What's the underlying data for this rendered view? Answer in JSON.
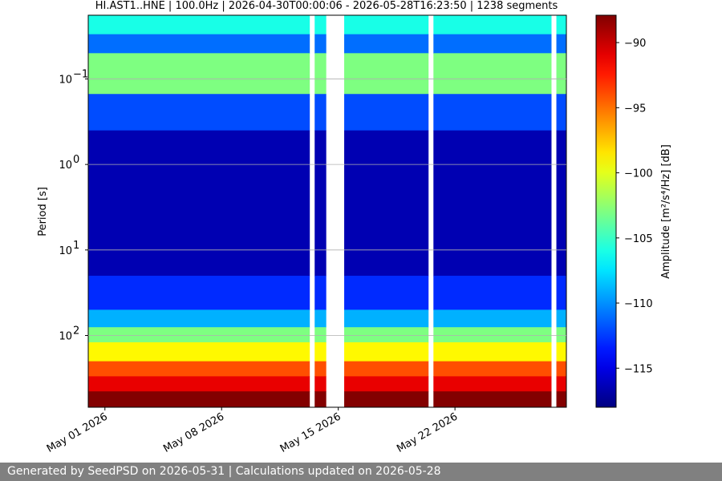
{
  "chart_data": {
    "type": "heatmap",
    "title": "HI.AST1..HNE | 100.0Hz | 2026-04-30T00:00:06 - 2026-05-28T16:23:50 | 1238 segments",
    "ylabel": "Period [s]",
    "xlim": [
      "2026-04-30T00:00:06",
      "2026-05-28T16:23:50"
    ],
    "xticks": [
      {
        "value": "2026-05-01",
        "label": "May 01 2026"
      },
      {
        "value": "2026-05-08",
        "label": "May 08 2026"
      },
      {
        "value": "2026-05-15",
        "label": "May 15 2026"
      },
      {
        "value": "2026-05-22",
        "label": "May 22 2026"
      }
    ],
    "ylim": [
      0.018,
      690
    ],
    "log_y": true,
    "y_inverted": true,
    "grid": true,
    "yticks": [
      {
        "value": 0.1,
        "label": "10",
        "exponent": "−1"
      },
      {
        "value": 1,
        "label": "10",
        "exponent": "0"
      },
      {
        "value": 10,
        "label": "10",
        "exponent": "1"
      },
      {
        "value": 100,
        "label": "10",
        "exponent": "2"
      }
    ],
    "bands": {
      "period_edges": [
        0.018,
        0.03,
        0.05,
        0.15,
        0.4,
        20,
        50,
        80,
        120,
        200,
        300,
        450,
        690
      ],
      "values": [
        -106,
        -111,
        -103,
        -112,
        -116.5,
        -113,
        -109,
        -103,
        -99,
        -94,
        -91,
        -88
      ]
    },
    "gaps": [
      [
        "2026-05-13T07:00",
        "2026-05-13T14:00"
      ],
      [
        "2026-05-14T06:40",
        "2026-05-15T08:30"
      ],
      [
        "2026-05-20T10:00",
        "2026-05-20T17:00"
      ],
      [
        "2026-05-27T19:00",
        "2026-05-28T02:00"
      ]
    ],
    "colormap": "jet",
    "clim": [
      -118,
      -87.9
    ],
    "cticks": [
      {
        "value": -90,
        "label": "−90"
      },
      {
        "value": -95,
        "label": "−95"
      },
      {
        "value": -100,
        "label": "−100"
      },
      {
        "value": -105,
        "label": "−105"
      },
      {
        "value": -110,
        "label": "−110"
      },
      {
        "value": -115,
        "label": "−115"
      }
    ],
    "colorbar_label": "Amplitude [m²/s⁴/Hz] [dB]"
  },
  "footer": {
    "text": "Generated by SeedPSD on 2026-05-31 | Calculations updated on 2026-05-28"
  }
}
